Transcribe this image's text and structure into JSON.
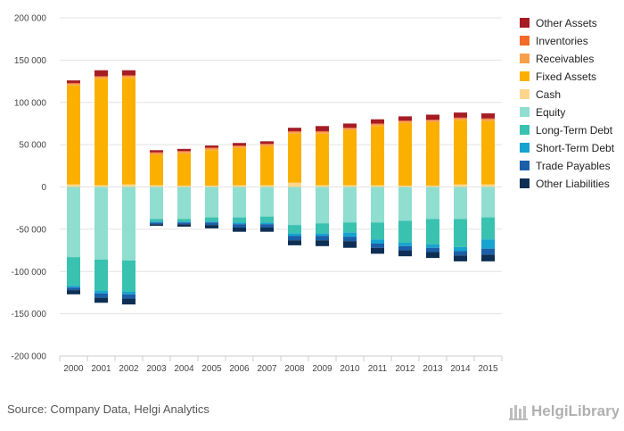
{
  "source_text": "Source: Company Data, Helgi Analytics",
  "brand": {
    "name": "HelgiLibrary"
  },
  "chart_data": {
    "type": "bar",
    "stacked": true,
    "title": "",
    "xlabel": "",
    "ylabel": "",
    "ylim": [
      -200000,
      200000
    ],
    "yticks": [
      200000,
      150000,
      100000,
      50000,
      0,
      -50000,
      -100000,
      -150000,
      -200000
    ],
    "ytick_labels": [
      "200 000",
      "150 000",
      "100 000",
      "50 000",
      "0",
      "-50 000",
      "-100 000",
      "-150 000",
      "-200 000"
    ],
    "grid": true,
    "legend_position": "right",
    "categories": [
      "2000",
      "2001",
      "2002",
      "2003",
      "2004",
      "2005",
      "2006",
      "2007",
      "2008",
      "2009",
      "2010",
      "2011",
      "2012",
      "2013",
      "2014",
      "2015"
    ],
    "series": [
      {
        "name": "Other Assets",
        "color": "#a51c24",
        "side": "positive",
        "values": [
          3000,
          7000,
          6000,
          2500,
          2500,
          2500,
          3000,
          3000,
          4000,
          6000,
          5000,
          5000,
          5000,
          6000,
          6000,
          6000
        ]
      },
      {
        "name": "Inventories",
        "color": "#f26b2a",
        "side": "positive",
        "values": [
          1000,
          1000,
          1000,
          1000,
          1000,
          1000,
          1000,
          1000,
          1000,
          1000,
          1000,
          1000,
          1000,
          1000,
          1000,
          1000
        ]
      },
      {
        "name": "Receivables",
        "color": "#f7a04b",
        "side": "positive",
        "values": [
          2000,
          2000,
          2000,
          2000,
          2000,
          2000,
          2000,
          2000,
          2000,
          2000,
          2000,
          2000,
          2000,
          2000,
          2000,
          2000
        ]
      },
      {
        "name": "Fixed Assets",
        "color": "#fbb000",
        "side": "positive",
        "values": [
          117000,
          126000,
          126000,
          36000,
          38000,
          42000,
          44000,
          46000,
          58000,
          61000,
          65000,
          70000,
          74000,
          75000,
          76000,
          75000
        ]
      },
      {
        "name": "Cash",
        "color": "#fdd68f",
        "side": "positive",
        "values": [
          3000,
          2000,
          3000,
          2000,
          1500,
          1500,
          2000,
          2000,
          5000,
          2000,
          2000,
          2000,
          1500,
          1500,
          3000,
          3000
        ]
      },
      {
        "name": "Equity",
        "color": "#8fded0",
        "side": "negative",
        "values": [
          -83000,
          -86000,
          -87000,
          -38000,
          -38000,
          -36000,
          -36000,
          -35000,
          -45000,
          -43000,
          -42000,
          -42000,
          -40000,
          -38000,
          -38000,
          -36000
        ]
      },
      {
        "name": "Long-Term Debt",
        "color": "#39c2b0",
        "side": "negative",
        "values": [
          -34000,
          -37000,
          -37000,
          -3000,
          -3000,
          -5000,
          -6000,
          -7000,
          -10000,
          -12000,
          -12000,
          -20000,
          -26000,
          -30000,
          -33000,
          -26000
        ]
      },
      {
        "name": "Short-Term Debt",
        "color": "#17a3cf",
        "side": "negative",
        "values": [
          -2000,
          -3000,
          -3000,
          -1000,
          -1000,
          -1000,
          -2000,
          -2000,
          -3000,
          -3000,
          -5000,
          -5000,
          -4000,
          -4000,
          -5000,
          -11000
        ]
      },
      {
        "name": "Trade Payables",
        "color": "#1b5fa8",
        "side": "negative",
        "values": [
          -3000,
          -5000,
          -5000,
          -2000,
          -2000,
          -3000,
          -4000,
          -4000,
          -5000,
          -5000,
          -5000,
          -5000,
          -5000,
          -5000,
          -5000,
          -7000
        ]
      },
      {
        "name": "Other Liabilities",
        "color": "#0e2f55",
        "side": "negative",
        "values": [
          -5000,
          -6000,
          -7000,
          -2000,
          -3000,
          -4000,
          -5000,
          -5000,
          -6000,
          -7000,
          -8000,
          -7000,
          -7000,
          -7000,
          -7000,
          -8000
        ]
      }
    ]
  }
}
